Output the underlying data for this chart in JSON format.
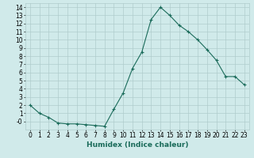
{
  "x": [
    0,
    1,
    2,
    3,
    4,
    5,
    6,
    7,
    8,
    9,
    10,
    11,
    12,
    13,
    14,
    15,
    16,
    17,
    18,
    19,
    20,
    21,
    22,
    23
  ],
  "y": [
    2,
    1,
    0.5,
    -0.2,
    -0.3,
    -0.3,
    -0.4,
    -0.5,
    -0.6,
    1.5,
    3.5,
    6.5,
    8.5,
    12.5,
    14,
    13,
    11.8,
    11,
    10,
    8.8,
    7.5,
    5.5,
    5.5,
    4.5
  ],
  "xlabel": "Humidex (Indice chaleur)",
  "line_color": "#1a6b5a",
  "marker": "+",
  "bg_color": "#d0eaea",
  "grid_color": "#b0cccc",
  "ylim": [
    -1,
    14.5
  ],
  "xlim": [
    -0.5,
    23.5
  ],
  "yticks": [
    0,
    1,
    2,
    3,
    4,
    5,
    6,
    7,
    8,
    9,
    10,
    11,
    12,
    13,
    14
  ],
  "ytick_labels": [
    "-0",
    "1",
    "2",
    "3",
    "4",
    "5",
    "6",
    "7",
    "8",
    "9",
    "10",
    "11",
    "12",
    "13",
    "14"
  ],
  "xticks": [
    0,
    1,
    2,
    3,
    4,
    5,
    6,
    7,
    8,
    9,
    10,
    11,
    12,
    13,
    14,
    15,
    16,
    17,
    18,
    19,
    20,
    21,
    22,
    23
  ],
  "xlabel_fontsize": 6.5,
  "tick_fontsize": 5.5
}
